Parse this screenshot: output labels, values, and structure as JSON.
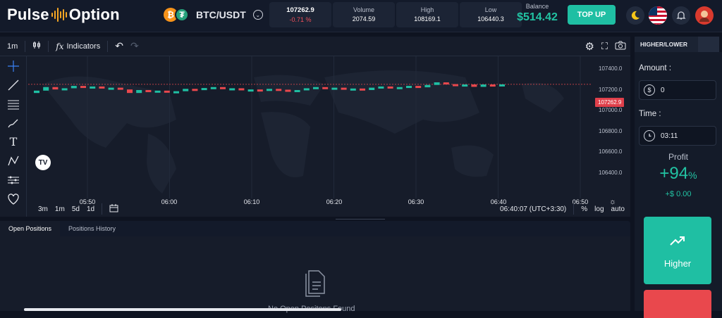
{
  "brand": {
    "left": "Pulse",
    "right": "Option"
  },
  "pair": {
    "name": "BTC/USDT",
    "icon_a": "btc-icon",
    "icon_b": "usdt-icon"
  },
  "stats": {
    "price": {
      "value": "107262.9",
      "change": "-0.71 %"
    },
    "volume": {
      "title": "Volume",
      "value": "2074.59"
    },
    "high": {
      "title": "High",
      "value": "108169.1"
    },
    "low": {
      "title": "Low",
      "value": "106440.3"
    }
  },
  "balance": {
    "title": "Balance",
    "value": "$514.42"
  },
  "topup_label": "TOP UP",
  "toolbar": {
    "interval": "1m",
    "indicators": "Indicators"
  },
  "yaxis": {
    "ticks": [
      "107400.0",
      "107200.0",
      "107000.0",
      "106800.0",
      "106600.0",
      "106400.0"
    ],
    "current": "107262.9"
  },
  "xaxis": {
    "ticks": [
      "05:50",
      "06:00",
      "06:10",
      "06:20",
      "06:30",
      "06:40",
      "06:50"
    ]
  },
  "chart_bottom": {
    "ranges": [
      "3m",
      "1m",
      "5d",
      "1d"
    ],
    "clock": "06:40:07 (UTC+3:30)",
    "percent": "%",
    "log": "log",
    "auto": "auto"
  },
  "tabs": {
    "open": "Open Positions",
    "history": "Positions History"
  },
  "empty_text": "No Open Positons Found",
  "side": {
    "tab": "HIGHER/LOWER",
    "amount_label": "Amount :",
    "amount_value": "0",
    "time_label": "Time :",
    "time_value": "03:11",
    "profit_label": "Profit",
    "profit_value": "+94",
    "profit_unit": "%",
    "profit_amount": "+$ 0.00",
    "higher_label": "Higher"
  },
  "colors": {
    "accent": "#1fbfa3",
    "up": "#1fbfa3",
    "down": "#e9484d"
  },
  "chart_data": {
    "type": "candlestick",
    "ylim": [
      106300,
      107500
    ],
    "last": 107262.9,
    "candles": [
      {
        "o": 107190,
        "c": 107210
      },
      {
        "o": 107210,
        "c": 107240
      },
      {
        "o": 107240,
        "c": 107220
      },
      {
        "o": 107220,
        "c": 107230
      },
      {
        "o": 107230,
        "c": 107250
      },
      {
        "o": 107250,
        "c": 107235
      },
      {
        "o": 107235,
        "c": 107245
      },
      {
        "o": 107245,
        "c": 107230
      },
      {
        "o": 107230,
        "c": 107235
      },
      {
        "o": 107235,
        "c": 107220
      },
      {
        "o": 107220,
        "c": 107190
      },
      {
        "o": 107190,
        "c": 107215
      },
      {
        "o": 107215,
        "c": 107200
      },
      {
        "o": 107200,
        "c": 107210
      },
      {
        "o": 107210,
        "c": 107198
      },
      {
        "o": 107198,
        "c": 107205
      },
      {
        "o": 107205,
        "c": 107225
      },
      {
        "o": 107225,
        "c": 107215
      },
      {
        "o": 107215,
        "c": 107232
      },
      {
        "o": 107232,
        "c": 107240
      },
      {
        "o": 107240,
        "c": 107226
      },
      {
        "o": 107226,
        "c": 107230
      },
      {
        "o": 107230,
        "c": 107214
      },
      {
        "o": 107214,
        "c": 107220
      },
      {
        "o": 107220,
        "c": 107210
      },
      {
        "o": 107210,
        "c": 107225
      },
      {
        "o": 107225,
        "c": 107218
      },
      {
        "o": 107218,
        "c": 107200
      },
      {
        "o": 107200,
        "c": 107215
      },
      {
        "o": 107215,
        "c": 107230
      },
      {
        "o": 107230,
        "c": 107240
      },
      {
        "o": 107240,
        "c": 107225
      },
      {
        "o": 107225,
        "c": 107235
      },
      {
        "o": 107235,
        "c": 107220
      },
      {
        "o": 107220,
        "c": 107228
      },
      {
        "o": 107228,
        "c": 107215
      },
      {
        "o": 107215,
        "c": 107235
      },
      {
        "o": 107235,
        "c": 107245
      },
      {
        "o": 107245,
        "c": 107232
      },
      {
        "o": 107232,
        "c": 107240
      },
      {
        "o": 107240,
        "c": 107250
      },
      {
        "o": 107250,
        "c": 107238
      },
      {
        "o": 107238,
        "c": 107258
      },
      {
        "o": 107258,
        "c": 107280
      },
      {
        "o": 107280,
        "c": 107265
      },
      {
        "o": 107265,
        "c": 107248
      },
      {
        "o": 107248,
        "c": 107262
      },
      {
        "o": 107262,
        "c": 107242
      },
      {
        "o": 107242,
        "c": 107262
      },
      {
        "o": 107262,
        "c": 107250
      },
      {
        "o": 107250,
        "c": 107262.9
      }
    ]
  }
}
